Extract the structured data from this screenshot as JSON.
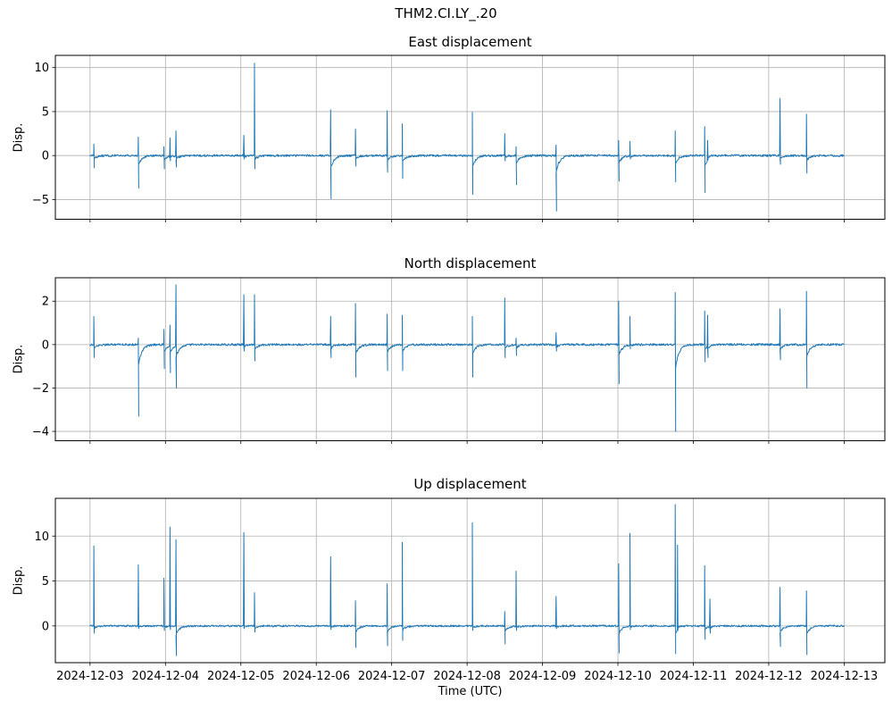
{
  "figure": {
    "suptitle": "THM2.CI.LY_.20",
    "xlabel": "Time (UTC)",
    "x_tick_labels": [
      "2024-12-03",
      "2024-12-04",
      "2024-12-05",
      "2024-12-06",
      "2024-12-07",
      "2024-12-08",
      "2024-12-09",
      "2024-12-10",
      "2024-12-11",
      "2024-12-12",
      "2024-12-13"
    ],
    "line_color": "#1f77b4",
    "grid_color": "#b0b0b0",
    "axis_color": "#000000",
    "background_color": "#ffffff"
  },
  "chart_data": [
    {
      "type": "line",
      "title": "East displacement",
      "ylabel": "Disp.",
      "x_start": "2024-12-03",
      "x_end": "2024-12-13",
      "xlim_days": [
        -0.46,
        10.54
      ],
      "ylim": [
        -7.24,
        11.39
      ],
      "yticks": [
        10,
        5,
        0,
        -5
      ],
      "grid": true,
      "legend": false,
      "baseline_value": 0,
      "noise_amplitude": 0.12,
      "spike_events": [
        {
          "day": 0.05,
          "up": 1.3,
          "down": -1.4
        },
        {
          "day": 0.64,
          "up": 2.1,
          "down": -3.7
        },
        {
          "day": 0.98,
          "up": 1.0,
          "down": -1.5
        },
        {
          "day": 1.06,
          "up": 2.0,
          "down": -0.6
        },
        {
          "day": 1.14,
          "up": 2.8,
          "down": -1.3
        },
        {
          "day": 2.04,
          "up": 2.3,
          "down": -0.4
        },
        {
          "day": 2.18,
          "up": 10.5,
          "down": -1.5
        },
        {
          "day": 3.19,
          "up": 5.2,
          "down": -4.9
        },
        {
          "day": 3.52,
          "up": 3.0,
          "down": -1.2
        },
        {
          "day": 3.94,
          "up": 5.1,
          "down": -1.9
        },
        {
          "day": 4.14,
          "up": 3.6,
          "down": -2.6
        },
        {
          "day": 5.07,
          "up": 4.9,
          "down": -4.4
        },
        {
          "day": 5.5,
          "up": 2.5,
          "down": -0.6
        },
        {
          "day": 5.65,
          "up": 1.0,
          "down": -3.3
        },
        {
          "day": 6.18,
          "up": 1.2,
          "down": -6.3
        },
        {
          "day": 7.01,
          "up": 1.7,
          "down": -2.9
        },
        {
          "day": 7.16,
          "up": 1.6,
          "down": -0.4
        },
        {
          "day": 7.76,
          "up": 2.8,
          "down": -3.0
        },
        {
          "day": 8.15,
          "up": 3.3,
          "down": -4.2
        },
        {
          "day": 8.19,
          "up": 1.7,
          "down": -0.5
        },
        {
          "day": 9.15,
          "up": 6.5,
          "down": -1.0
        },
        {
          "day": 9.5,
          "up": 4.7,
          "down": -2.0
        }
      ]
    },
    {
      "type": "line",
      "title": "North displacement",
      "ylabel": "Disp.",
      "x_start": "2024-12-03",
      "x_end": "2024-12-13",
      "xlim_days": [
        -0.46,
        10.54
      ],
      "ylim": [
        -4.43,
        3.08
      ],
      "yticks": [
        2,
        0,
        -2,
        -4
      ],
      "grid": true,
      "legend": false,
      "baseline_value": 0,
      "noise_amplitude": 0.05,
      "spike_events": [
        {
          "day": 0.05,
          "up": 1.3,
          "down": -0.6
        },
        {
          "day": 0.64,
          "up": 0.3,
          "down": -3.3
        },
        {
          "day": 0.98,
          "up": 0.7,
          "down": -1.1
        },
        {
          "day": 1.06,
          "up": 0.9,
          "down": -1.3
        },
        {
          "day": 1.14,
          "up": 2.75,
          "down": -2.0
        },
        {
          "day": 2.04,
          "up": 2.3,
          "down": -0.3
        },
        {
          "day": 2.18,
          "up": 2.3,
          "down": -0.75
        },
        {
          "day": 3.19,
          "up": 1.3,
          "down": -0.6
        },
        {
          "day": 3.52,
          "up": 1.9,
          "down": -1.5
        },
        {
          "day": 3.94,
          "up": 1.4,
          "down": -1.2
        },
        {
          "day": 4.14,
          "up": 1.35,
          "down": -1.2
        },
        {
          "day": 5.07,
          "up": 1.3,
          "down": -1.5
        },
        {
          "day": 5.5,
          "up": 2.15,
          "down": -0.6
        },
        {
          "day": 5.65,
          "up": 0.3,
          "down": -0.5
        },
        {
          "day": 6.18,
          "up": 0.55,
          "down": -0.3
        },
        {
          "day": 7.01,
          "up": 2.0,
          "down": -1.8
        },
        {
          "day": 7.16,
          "up": 1.3,
          "down": -0.2
        },
        {
          "day": 7.76,
          "up": 2.4,
          "down": -4.0
        },
        {
          "day": 8.15,
          "up": 1.55,
          "down": -0.8
        },
        {
          "day": 8.19,
          "up": 1.35,
          "down": -0.6
        },
        {
          "day": 9.15,
          "up": 1.65,
          "down": -0.7
        },
        {
          "day": 9.5,
          "up": 2.45,
          "down": -2.0
        }
      ]
    },
    {
      "type": "line",
      "title": "Up displacement",
      "ylabel": "Disp.",
      "x_start": "2024-12-03",
      "x_end": "2024-12-13",
      "xlim_days": [
        -0.46,
        10.54
      ],
      "ylim": [
        -4.09,
        14.2
      ],
      "yticks": [
        10,
        5,
        0
      ],
      "grid": true,
      "legend": false,
      "baseline_value": 0,
      "noise_amplitude": 0.1,
      "spike_events": [
        {
          "day": 0.05,
          "up": 8.9,
          "down": -0.8
        },
        {
          "day": 0.64,
          "up": 6.8,
          "down": -0.3
        },
        {
          "day": 0.98,
          "up": 5.3,
          "down": -0.5
        },
        {
          "day": 1.06,
          "up": 11.0,
          "down": -0.4
        },
        {
          "day": 1.14,
          "up": 9.6,
          "down": -3.3
        },
        {
          "day": 2.04,
          "up": 10.4,
          "down": -0.3
        },
        {
          "day": 2.18,
          "up": 3.7,
          "down": -0.7
        },
        {
          "day": 3.19,
          "up": 7.7,
          "down": -0.4
        },
        {
          "day": 3.52,
          "up": 2.8,
          "down": -2.4
        },
        {
          "day": 3.94,
          "up": 4.7,
          "down": -2.2
        },
        {
          "day": 4.14,
          "up": 9.3,
          "down": -1.6
        },
        {
          "day": 5.07,
          "up": 11.5,
          "down": -0.5
        },
        {
          "day": 5.5,
          "up": 1.6,
          "down": -2.0
        },
        {
          "day": 5.65,
          "up": 6.1,
          "down": -0.5
        },
        {
          "day": 6.18,
          "up": 3.3,
          "down": -0.3
        },
        {
          "day": 7.01,
          "up": 6.9,
          "down": -3.0
        },
        {
          "day": 7.16,
          "up": 10.3,
          "down": -0.4
        },
        {
          "day": 7.76,
          "up": 13.5,
          "down": -3.1
        },
        {
          "day": 7.79,
          "up": 9.0,
          "down": -0.5
        },
        {
          "day": 8.15,
          "up": 6.7,
          "down": -1.5
        },
        {
          "day": 8.22,
          "up": 3.0,
          "down": -0.8
        },
        {
          "day": 9.15,
          "up": 4.3,
          "down": -2.3
        },
        {
          "day": 9.5,
          "up": 3.9,
          "down": -3.2
        }
      ]
    }
  ]
}
